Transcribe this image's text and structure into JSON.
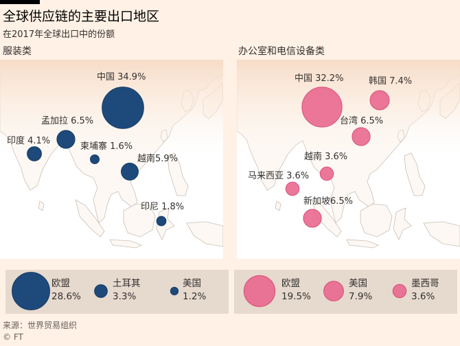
{
  "header": {
    "title": "全球供应链的主要出口地区",
    "subtitle": "在2017年全球出口中的份额"
  },
  "colors": {
    "apparel": "#1d4a7a",
    "office": "#e8608a",
    "land": "#fdf8f3",
    "sea": "#ffffff",
    "legend_bg": "#e6d9ce"
  },
  "chart_data": [
    {
      "type": "bubble-map",
      "title": "服装类",
      "unit": "%",
      "series": [
        {
          "points": [
            {
              "region": "中国",
              "label": "中国 34.9%",
              "value": 34.9
            },
            {
              "region": "孟加拉",
              "label": "孟加拉 6.5%",
              "value": 6.5
            },
            {
              "region": "印度",
              "label": "印度 4.1%",
              "value": 4.1
            },
            {
              "region": "柬埔寨",
              "label": "柬埔寨 1.6%",
              "value": 1.6
            },
            {
              "region": "越南",
              "label": "越南5.9%",
              "value": 5.9
            },
            {
              "region": "印尼",
              "label": "印尼 1.8%",
              "value": 1.8
            }
          ]
        }
      ],
      "legend": [
        {
          "region": "欧盟",
          "value": 28.6,
          "value_label": "28.6%"
        },
        {
          "region": "土耳其",
          "value": 3.3,
          "value_label": "3.3%"
        },
        {
          "region": "美国",
          "value": 1.2,
          "value_label": "1.2%"
        }
      ]
    },
    {
      "type": "bubble-map",
      "title": "办公室和电信设备类",
      "unit": "%",
      "series": [
        {
          "points": [
            {
              "region": "中国",
              "label": "中国 32.2%",
              "value": 32.2
            },
            {
              "region": "韩国",
              "label": "韩国 7.4%",
              "value": 7.4
            },
            {
              "region": "台湾",
              "label": "台湾 6.5%",
              "value": 6.5
            },
            {
              "region": "越南",
              "label": "越南 3.6%",
              "value": 3.6
            },
            {
              "region": "马来西亚",
              "label": "马来西亚 3.6%",
              "value": 3.6
            },
            {
              "region": "新加坡",
              "label": "新加坡6.5%",
              "value": 6.5
            }
          ]
        }
      ],
      "legend": [
        {
          "region": "欧盟",
          "value": 19.5,
          "value_label": "19.5%"
        },
        {
          "region": "美国",
          "value": 7.9,
          "value_label": "7.9%"
        },
        {
          "region": "墨西哥",
          "value": 3.6,
          "value_label": "3.6%"
        }
      ]
    }
  ],
  "footer": {
    "source": "来源：世界贸易组织",
    "credit": "© FT"
  }
}
